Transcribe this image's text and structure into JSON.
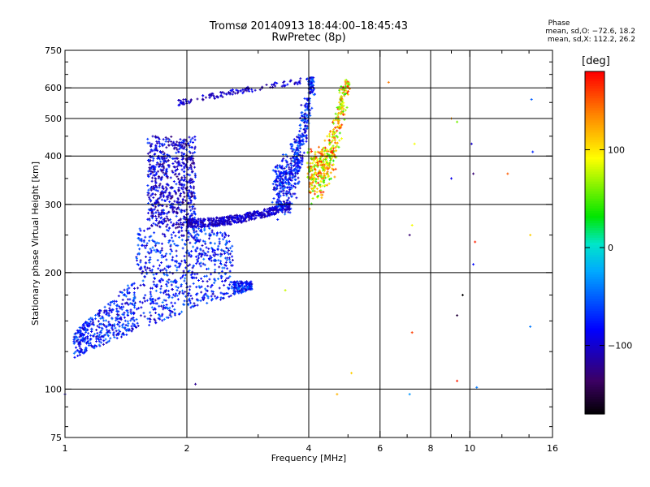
{
  "header": {
    "title_line1": "Tromsø 20140913 18:44:00–18:45:43",
    "title_line2": "RwPretec (8p)",
    "stats_title": "Phase",
    "stats_o": "mean, sd,O: −72.6, 18.2",
    "stats_x": "mean, sd,X: 112.2, 26.2"
  },
  "colorbar": {
    "unit": "[deg]",
    "ticks": [
      100,
      0,
      -100
    ],
    "range": [
      -170,
      180
    ]
  },
  "chart_data": {
    "type": "scatter",
    "xlabel": "Frequency [MHz]",
    "ylabel": "Stationary phase Virtual Height [km]",
    "xscale": "log",
    "yscale": "log",
    "xlim": [
      1,
      16
    ],
    "ylim": [
      75,
      750
    ],
    "xticks": [
      1,
      2,
      4,
      6,
      8,
      10,
      16
    ],
    "yticks": [
      75,
      100,
      200,
      300,
      400,
      500,
      600,
      750
    ],
    "grid_x": [
      2,
      4,
      6,
      8,
      10
    ],
    "grid_y": [
      100,
      200,
      300,
      400,
      500,
      600
    ],
    "color_by": "Phase [deg]",
    "clusters": [
      {
        "name": "lower-F-spread",
        "x": [
          1.05,
          2.9
        ],
        "y": [
          120,
          260
        ],
        "phase": [
          -110,
          -40
        ]
      },
      {
        "name": "mid-F-spread",
        "x": [
          1.6,
          2.1
        ],
        "y": [
          260,
          450
        ],
        "phase": [
          -130,
          -60
        ]
      },
      {
        "name": "F2-O-trace",
        "x": [
          2.0,
          3.6
        ],
        "y": [
          265,
          300
        ],
        "phase": [
          -120,
          -80
        ]
      },
      {
        "name": "F2-O-rise",
        "x": [
          3.3,
          4.1
        ],
        "y": [
          300,
          640
        ],
        "phase": [
          -110,
          -40
        ]
      },
      {
        "name": "F2-X-rise",
        "x": [
          4.0,
          5.0
        ],
        "y": [
          320,
          630
        ],
        "phase": [
          40,
          170
        ]
      },
      {
        "name": "upper-trace",
        "x": [
          1.9,
          4.0
        ],
        "y": [
          540,
          650
        ],
        "phase": [
          -120,
          -80
        ]
      }
    ],
    "points": [
      {
        "x": 6.3,
        "y": 620,
        "phase": 140
      },
      {
        "x": 7.3,
        "y": 430,
        "phase": 90
      },
      {
        "x": 7.2,
        "y": 265,
        "phase": 90
      },
      {
        "x": 7.1,
        "y": 250,
        "phase": -130
      },
      {
        "x": 7.2,
        "y": 140,
        "phase": 160
      },
      {
        "x": 7.1,
        "y": 97,
        "phase": -30
      },
      {
        "x": 9.0,
        "y": 500,
        "phase": 130
      },
      {
        "x": 9.3,
        "y": 490,
        "phase": 60
      },
      {
        "x": 9.0,
        "y": 350,
        "phase": -90
      },
      {
        "x": 9.6,
        "y": 175,
        "phase": -170
      },
      {
        "x": 9.3,
        "y": 155,
        "phase": -150
      },
      {
        "x": 9.3,
        "y": 105,
        "phase": 170
      },
      {
        "x": 10.1,
        "y": 430,
        "phase": -100
      },
      {
        "x": 10.2,
        "y": 360,
        "phase": -130
      },
      {
        "x": 10.3,
        "y": 240,
        "phase": 170
      },
      {
        "x": 10.2,
        "y": 210,
        "phase": -80
      },
      {
        "x": 10.4,
        "y": 101,
        "phase": -40
      },
      {
        "x": 12.4,
        "y": 360,
        "phase": 150
      },
      {
        "x": 14.2,
        "y": 560,
        "phase": -50
      },
      {
        "x": 14.3,
        "y": 410,
        "phase": -70
      },
      {
        "x": 14.1,
        "y": 250,
        "phase": 110
      },
      {
        "x": 14.1,
        "y": 145,
        "phase": -40
      },
      {
        "x": 3.5,
        "y": 180,
        "phase": 80
      },
      {
        "x": 5.1,
        "y": 110,
        "phase": 110
      },
      {
        "x": 4.7,
        "y": 97,
        "phase": 120
      },
      {
        "x": 1.0,
        "y": 97,
        "phase": -100
      },
      {
        "x": 2.1,
        "y": 103,
        "phase": -120
      }
    ]
  }
}
